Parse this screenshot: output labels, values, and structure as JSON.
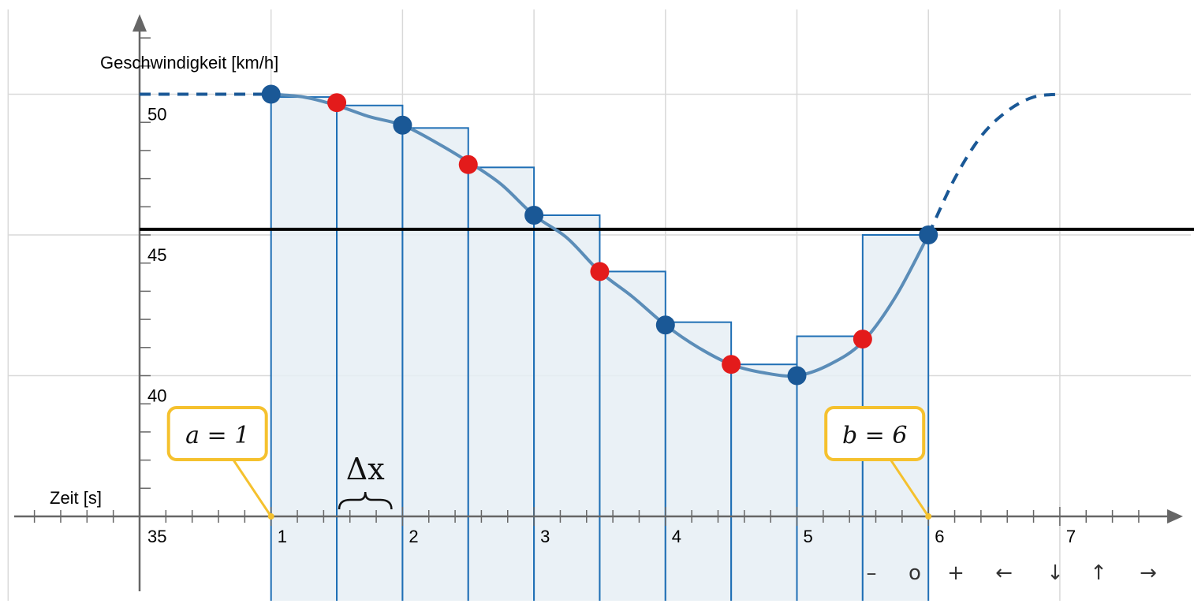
{
  "chart_data": {
    "type": "line",
    "xlabel": "Zeit [s]",
    "ylabel": "Geschwindigkeit [km/h]",
    "xlim": [
      -1,
      7.8
    ],
    "ylim": [
      34.5,
      52.5
    ],
    "x_axis_y": 35,
    "x_ticks": [
      {
        "value": 1,
        "label": "1"
      },
      {
        "value": 2,
        "label": "2"
      },
      {
        "value": 3,
        "label": "3"
      },
      {
        "value": 4,
        "label": "4"
      },
      {
        "value": 5,
        "label": "5"
      },
      {
        "value": 6,
        "label": "6"
      },
      {
        "value": 7,
        "label": "7"
      }
    ],
    "y_ticks": [
      {
        "value": 35,
        "label": "35"
      },
      {
        "value": 40,
        "label": "40"
      },
      {
        "value": 45,
        "label": "45"
      },
      {
        "value": 50,
        "label": "50"
      }
    ],
    "grid": true,
    "curve_solid": {
      "x": [
        1.0,
        1.25,
        1.5,
        1.75,
        2.0,
        2.25,
        2.5,
        2.75,
        3.0,
        3.25,
        3.5,
        3.75,
        4.0,
        4.25,
        4.5,
        4.75,
        5.0,
        5.25,
        5.5,
        5.75,
        6.0
      ],
      "y": [
        50.0,
        49.9,
        49.6,
        49.2,
        48.9,
        48.3,
        47.6,
        46.8,
        45.7,
        44.9,
        43.7,
        42.8,
        41.8,
        41.0,
        40.4,
        40.1,
        40.0,
        40.4,
        41.2,
        42.8,
        45.0
      ]
    },
    "curve_dashed_left": {
      "x": [
        0.0,
        1.0
      ],
      "y": [
        50.0,
        50.0
      ]
    },
    "curve_dashed_right": {
      "x": [
        6.0,
        6.2,
        6.4,
        6.6,
        6.8,
        7.0
      ],
      "y": [
        45.0,
        47.0,
        48.5,
        49.4,
        49.9,
        50.0
      ]
    },
    "average_line": {
      "y": 45.2
    },
    "rectangles": [
      {
        "x0": 1.0,
        "x1": 1.5,
        "height": 49.9
      },
      {
        "x0": 1.5,
        "x1": 2.0,
        "height": 49.6
      },
      {
        "x0": 2.0,
        "x1": 2.5,
        "height": 48.8
      },
      {
        "x0": 2.5,
        "x1": 3.0,
        "height": 47.4
      },
      {
        "x0": 3.0,
        "x1": 3.5,
        "height": 45.7
      },
      {
        "x0": 3.5,
        "x1": 4.0,
        "height": 43.7
      },
      {
        "x0": 4.0,
        "x1": 4.5,
        "height": 41.9
      },
      {
        "x0": 4.5,
        "x1": 5.0,
        "height": 40.4
      },
      {
        "x0": 5.0,
        "x1": 5.5,
        "height": 41.4
      },
      {
        "x0": 5.5,
        "x1": 6.0,
        "height": 45.0
      }
    ],
    "points_blue": [
      {
        "x": 1,
        "y": 50.0
      },
      {
        "x": 2,
        "y": 48.9
      },
      {
        "x": 3,
        "y": 45.7
      },
      {
        "x": 4,
        "y": 41.8
      },
      {
        "x": 5,
        "y": 40.0
      },
      {
        "x": 6,
        "y": 45.0
      }
    ],
    "points_red": [
      {
        "x": 1.5,
        "y": 49.7
      },
      {
        "x": 2.5,
        "y": 47.5
      },
      {
        "x": 3.5,
        "y": 43.7
      },
      {
        "x": 4.5,
        "y": 40.4
      },
      {
        "x": 5.5,
        "y": 41.3
      }
    ],
    "callouts": [
      {
        "text": "a = 1",
        "x": 1
      },
      {
        "text": "b = 6",
        "x": 6
      }
    ],
    "delta_label": "Δx",
    "colors": {
      "curve": "#5b8db8",
      "point_blue": "#1a5896",
      "point_red": "#e31b1b",
      "rect_fill": "#e6eef4",
      "rect_stroke": "#1f6fb5",
      "callout": "#f5c12e",
      "average": "#000000",
      "grid": "#d9d9d9"
    }
  },
  "nav_buttons": [
    "–",
    "o",
    "+",
    "←",
    "↓",
    "↑",
    "→"
  ]
}
